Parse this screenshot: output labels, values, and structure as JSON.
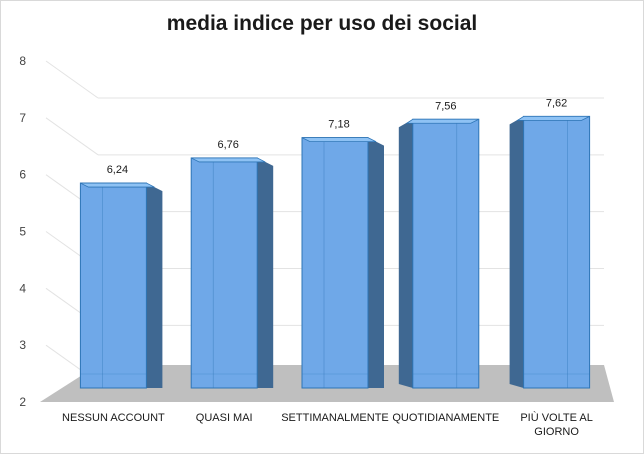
{
  "chart_data": {
    "type": "bar",
    "title": "media indice per uso dei social",
    "xlabel": "",
    "ylabel": "",
    "ylim": [
      2,
      8
    ],
    "yticks": [
      2,
      3,
      4,
      5,
      6,
      7,
      8
    ],
    "categories": [
      [
        "NESSUN ACCOUNT"
      ],
      [
        "QUASI MAI"
      ],
      [
        "SETTIMANALMENTE"
      ],
      [
        "QUOTIDIANAMENTE"
      ],
      [
        "PIÙ VOLTE AL",
        "GIORNO"
      ]
    ],
    "values": [
      6.24,
      6.76,
      7.18,
      7.56,
      7.62
    ],
    "data_labels": [
      "6,24",
      "6,76",
      "7,18",
      "7,56",
      "7,62"
    ],
    "grid": true,
    "legend": "none",
    "style": "3d-column",
    "colors": {
      "bar_front": "#6fa8e8",
      "bar_side": "#3f6892",
      "bar_top": "#8ec2f4",
      "bar_outline": "#2e75b6",
      "floor": "#bfbfbf",
      "gridline": "#e3e3e3"
    }
  }
}
